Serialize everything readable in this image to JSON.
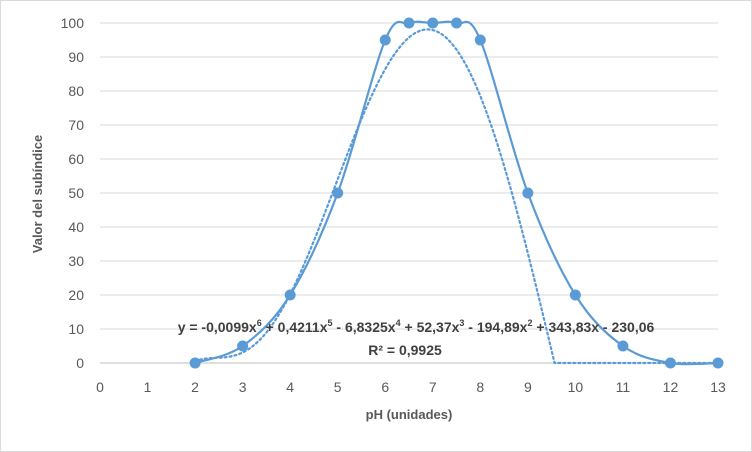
{
  "chart_data": {
    "type": "scatter",
    "xlabel": "pH (unidades)",
    "ylabel": "Valor del subíndice",
    "xlim": [
      0,
      13
    ],
    "ylim": [
      0,
      100
    ],
    "x_ticks": [
      "0",
      "1",
      "2",
      "3",
      "4",
      "5",
      "6",
      "7",
      "8",
      "9",
      "10",
      "11",
      "12",
      "13"
    ],
    "y_ticks": [
      "0",
      "10",
      "20",
      "30",
      "40",
      "50",
      "60",
      "70",
      "80",
      "90",
      "100"
    ],
    "grid": "horizontal",
    "series": [
      {
        "style": "smooth line with markers",
        "color": "#5b9bd5",
        "x": [
          2,
          3,
          4,
          5,
          6,
          6.5,
          7,
          7.5,
          8,
          9,
          10,
          11,
          12,
          13
        ],
        "y": [
          0,
          5,
          20,
          50,
          95,
          100,
          100,
          100,
          95,
          50,
          20,
          5,
          0,
          0
        ]
      }
    ],
    "trendline": {
      "type": "polynomial",
      "order": 6,
      "style": "dotted",
      "color": "#5b9bd5",
      "x_range": [
        2,
        13
      ],
      "coefficients": [
        -0.0099,
        0.4211,
        -6.8325,
        52.37,
        -194.89,
        343.83,
        -230.06
      ],
      "equation": {
        "prefix": "y = -0,0099x",
        "exp6": "6",
        "t5": " + 0,4211x",
        "exp5": "5",
        "t4": " - 6,8325x",
        "exp4": "4",
        "t3": " + 52,37x",
        "exp3": "3",
        "t2": " - 194,89x",
        "exp2": "2",
        "t1": " + 343,83x - 230,06"
      },
      "r_squared": "R² = 0,9925"
    }
  }
}
